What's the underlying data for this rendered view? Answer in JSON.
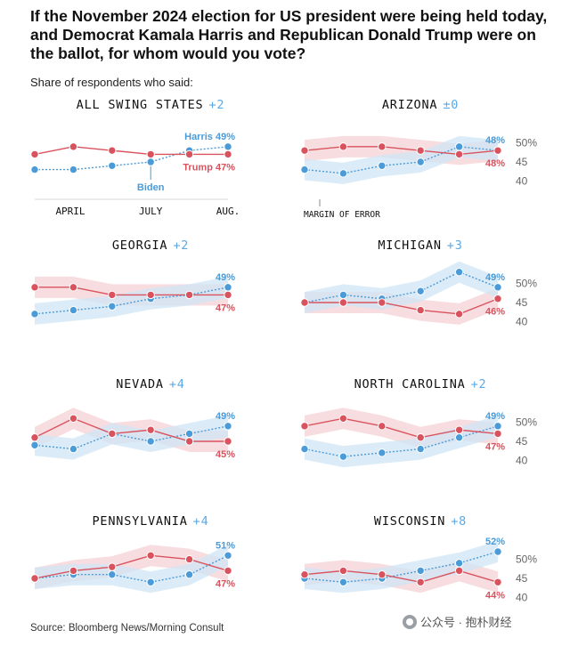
{
  "headline": "If the November 2024 election for US president were being held today, and Democrat Kamala Harris and Republican Donald Trump were on the ballot, for whom would you vote?",
  "subhead": "Share of respondents who said:",
  "source": "Source: Bloomberg News/Morning Consult",
  "watermark": "公众号 · 抱朴财经",
  "colors": {
    "harris": "#4a9bd8",
    "trump": "#d9535e",
    "harris_band": "#cfe5f6",
    "trump_band": "#f6d2d6"
  },
  "chart_data": [
    {
      "type": "line",
      "title": "ALL SWING STATES",
      "lead": "+2",
      "ylim": [
        38,
        52
      ],
      "x": [
        0,
        1,
        2,
        3,
        4,
        5
      ],
      "series": [
        {
          "name": "Harris",
          "values": [
            43,
            43,
            44,
            45,
            48,
            49
          ],
          "end_label": "Harris 49%"
        },
        {
          "name": "Trump",
          "values": [
            47,
            49,
            48,
            47,
            47,
            47
          ],
          "end_label": "Trump 47%"
        }
      ],
      "x_tick_labels": [
        "APRIL",
        "JULY",
        "AUG."
      ],
      "annotation": "Biden",
      "error_band": false
    },
    {
      "type": "line",
      "title": "ARIZONA",
      "lead": "±0",
      "ylim": [
        38,
        52
      ],
      "x": [
        0,
        1,
        2,
        3,
        4,
        5
      ],
      "series": [
        {
          "name": "Harris",
          "values": [
            43,
            42,
            44,
            45,
            49,
            48
          ],
          "end_label": "48%"
        },
        {
          "name": "Trump",
          "values": [
            48,
            49,
            49,
            48,
            47,
            48
          ],
          "end_label": "48%"
        }
      ],
      "y_ticks": [
        "50%",
        "45",
        "40"
      ],
      "annotation": "MARGIN OF ERROR",
      "error_band": true
    },
    {
      "type": "line",
      "title": "GEORGIA",
      "lead": "+2",
      "ylim": [
        38,
        52
      ],
      "x": [
        0,
        1,
        2,
        3,
        4,
        5
      ],
      "series": [
        {
          "name": "Harris",
          "values": [
            42,
            43,
            44,
            46,
            47,
            49
          ],
          "end_label": "49%"
        },
        {
          "name": "Trump",
          "values": [
            49,
            49,
            47,
            47,
            47,
            47
          ],
          "end_label": "47%"
        }
      ],
      "error_band": true
    },
    {
      "type": "line",
      "title": "MICHIGAN",
      "lead": "+3",
      "ylim": [
        38,
        52
      ],
      "x": [
        0,
        1,
        2,
        3,
        4,
        5
      ],
      "series": [
        {
          "name": "Harris",
          "values": [
            45,
            47,
            46,
            48,
            53,
            49
          ],
          "end_label": "49%"
        },
        {
          "name": "Trump",
          "values": [
            45,
            45,
            45,
            43,
            42,
            46
          ],
          "end_label": "46%"
        }
      ],
      "y_ticks": [
        "50%",
        "45",
        "40"
      ],
      "error_band": true
    },
    {
      "type": "line",
      "title": "NEVADA",
      "lead": "+4",
      "ylim": [
        38,
        52
      ],
      "x": [
        0,
        1,
        2,
        3,
        4,
        5
      ],
      "series": [
        {
          "name": "Harris",
          "values": [
            44,
            43,
            47,
            45,
            47,
            49
          ],
          "end_label": "49%"
        },
        {
          "name": "Trump",
          "values": [
            46,
            51,
            47,
            48,
            45,
            45
          ],
          "end_label": "45%"
        }
      ],
      "error_band": true
    },
    {
      "type": "line",
      "title": "NORTH CAROLINA",
      "lead": "+2",
      "ylim": [
        38,
        52
      ],
      "x": [
        0,
        1,
        2,
        3,
        4,
        5
      ],
      "series": [
        {
          "name": "Harris",
          "values": [
            43,
            41,
            42,
            43,
            46,
            49
          ],
          "end_label": "49%"
        },
        {
          "name": "Trump",
          "values": [
            49,
            51,
            49,
            46,
            48,
            47
          ],
          "end_label": "47%"
        }
      ],
      "y_ticks": [
        "50%",
        "45",
        "40"
      ],
      "error_band": true
    },
    {
      "type": "line",
      "title": "PENNSYLVANIA",
      "lead": "+4",
      "ylim": [
        38,
        52
      ],
      "x": [
        0,
        1,
        2,
        3,
        4,
        5
      ],
      "series": [
        {
          "name": "Harris",
          "values": [
            45,
            46,
            46,
            44,
            46,
            51
          ],
          "end_label": "51%"
        },
        {
          "name": "Trump",
          "values": [
            45,
            47,
            48,
            51,
            50,
            47
          ],
          "end_label": "47%"
        }
      ],
      "error_band": true
    },
    {
      "type": "line",
      "title": "WISCONSIN",
      "lead": "+8",
      "ylim": [
        38,
        52
      ],
      "x": [
        0,
        1,
        2,
        3,
        4,
        5
      ],
      "series": [
        {
          "name": "Harris",
          "values": [
            45,
            44,
            45,
            47,
            49,
            52
          ],
          "end_label": "52%"
        },
        {
          "name": "Trump",
          "values": [
            46,
            47,
            46,
            44,
            47,
            44
          ],
          "end_label": "44%"
        }
      ],
      "y_ticks": [
        "50%",
        "45",
        "40"
      ],
      "error_band": true
    }
  ]
}
